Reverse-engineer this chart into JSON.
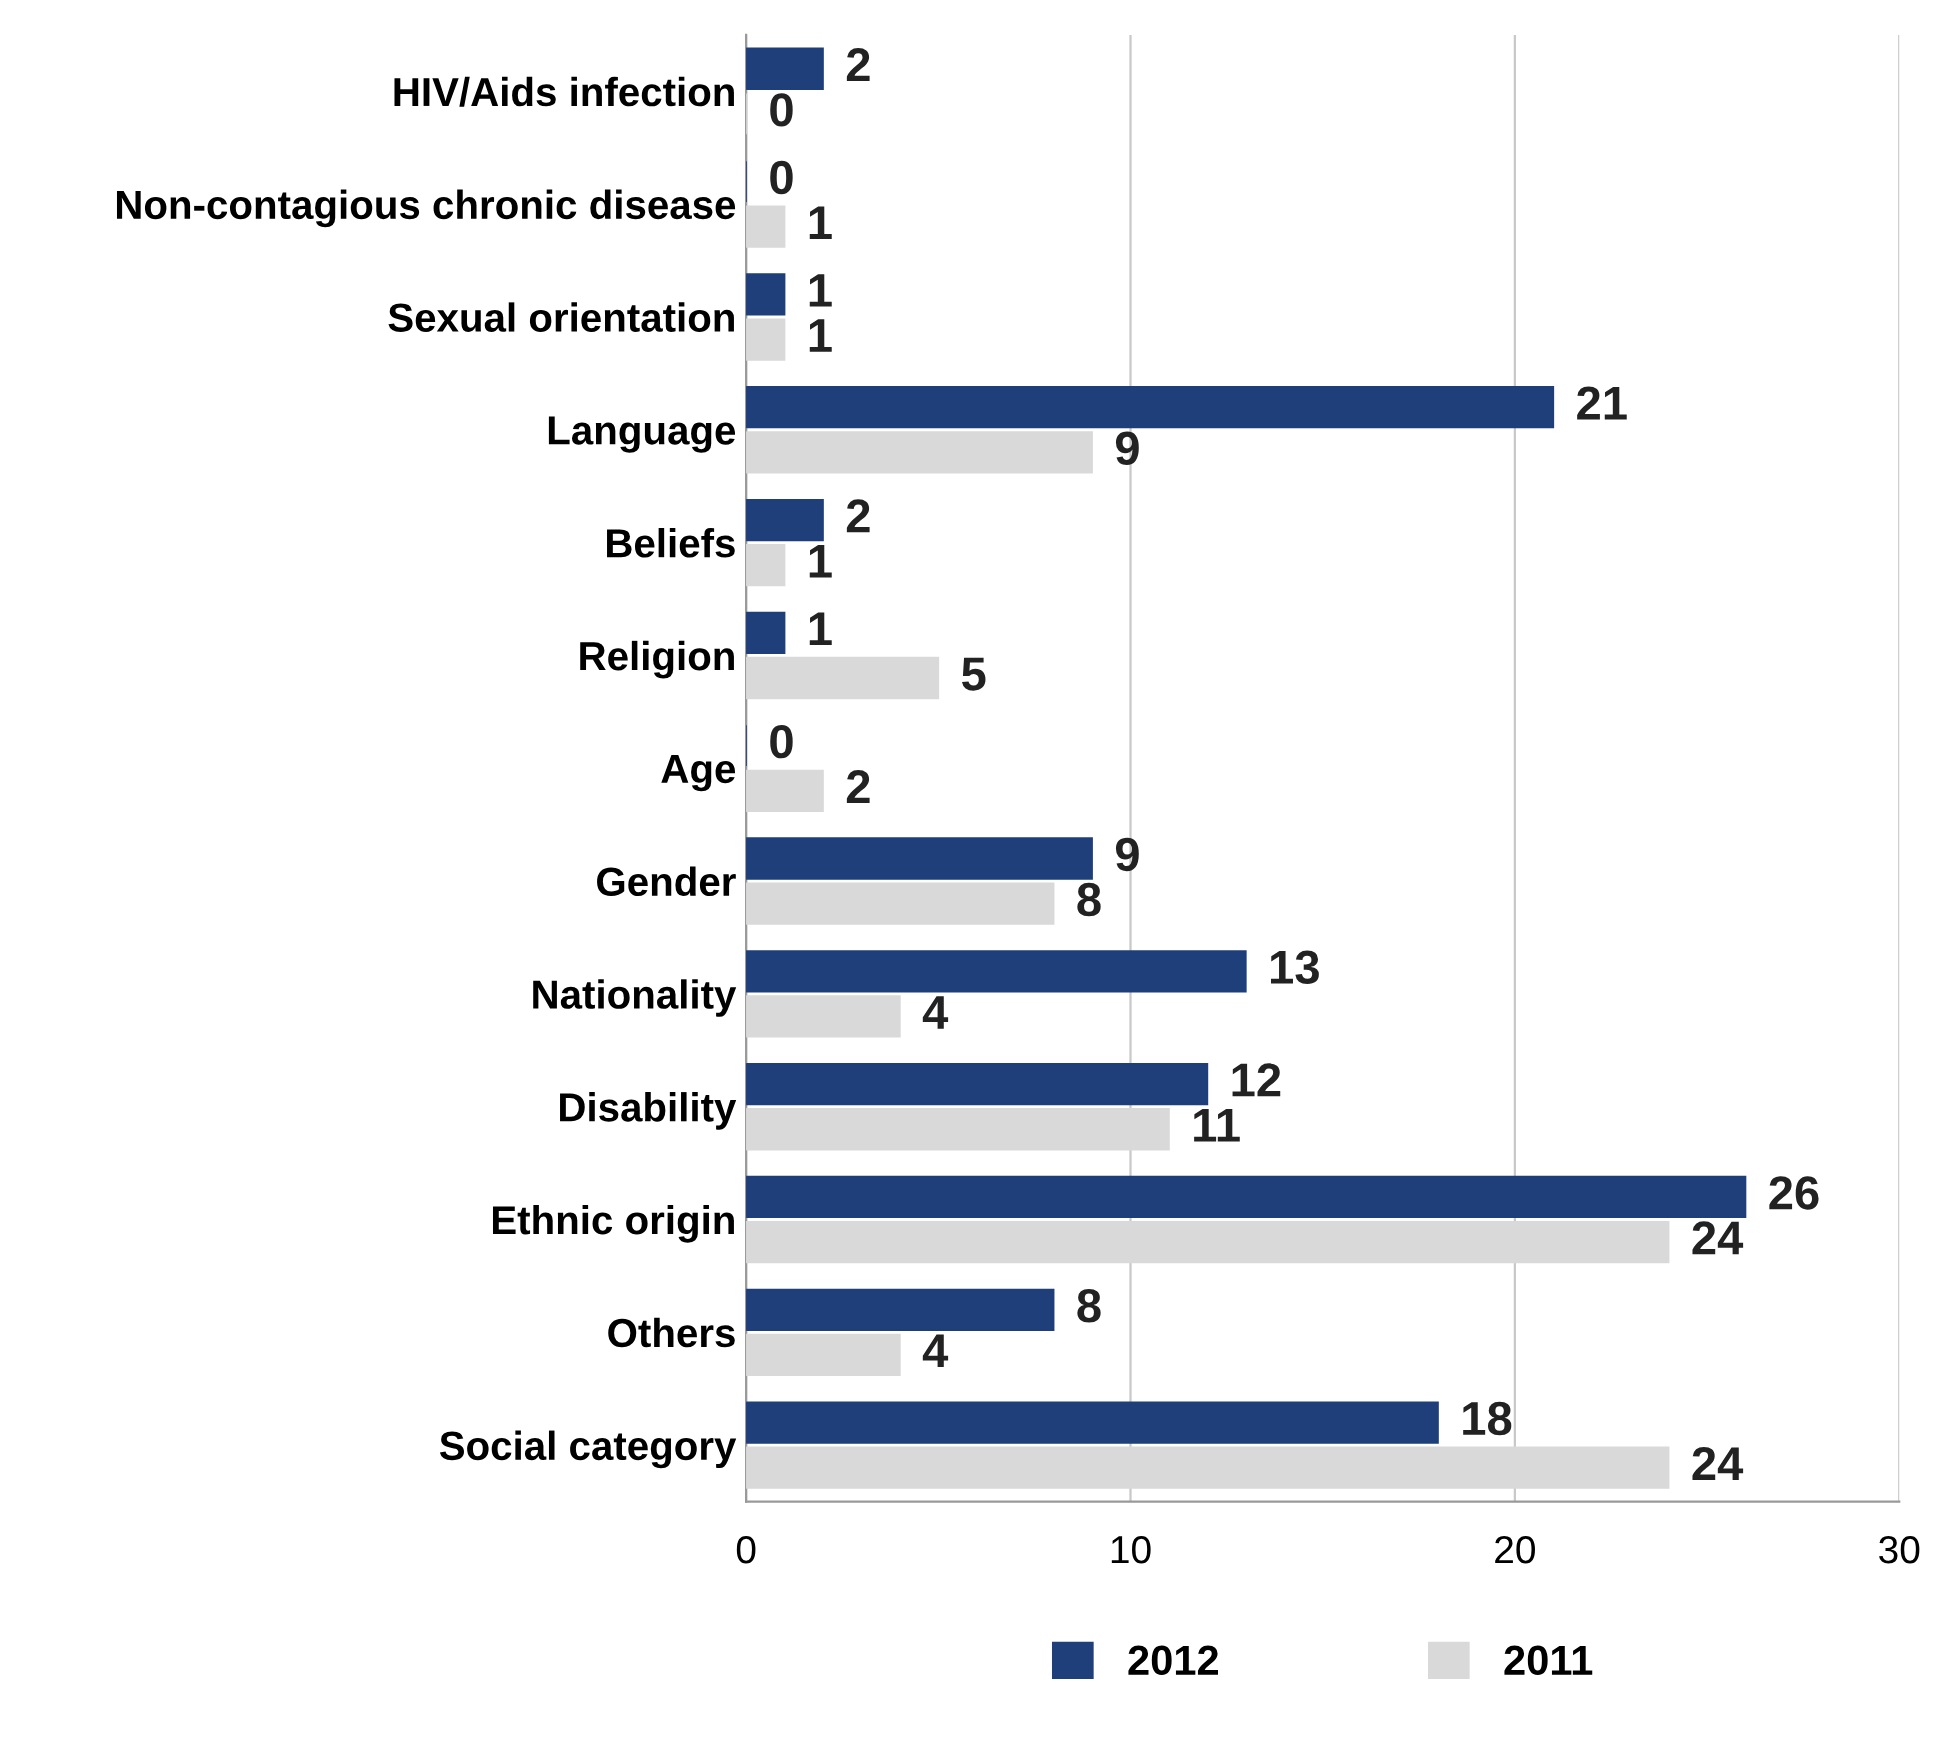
{
  "chart_data": {
    "type": "bar",
    "orientation": "horizontal",
    "categories": [
      "HIV/Aids infection",
      "Non-contagious chronic disease",
      "Sexual orientation",
      "Language",
      "Beliefs",
      "Religion",
      "Age",
      "Gender",
      "Nationality",
      "Disability",
      "Ethnic origin",
      "Others",
      "Social category"
    ],
    "series": [
      {
        "name": "2012",
        "color": "#1f3f7a",
        "values": [
          2,
          0,
          1,
          21,
          2,
          1,
          0,
          9,
          13,
          12,
          26,
          8,
          18
        ]
      },
      {
        "name": "2011",
        "color": "#d9d9d9",
        "values": [
          0,
          1,
          1,
          9,
          1,
          5,
          2,
          8,
          4,
          11,
          24,
          4,
          24
        ]
      }
    ],
    "xlim": [
      0,
      30
    ],
    "xticks": [
      0,
      10,
      20,
      30
    ],
    "grid": "x",
    "legend": "bottom",
    "data_labels": true
  }
}
